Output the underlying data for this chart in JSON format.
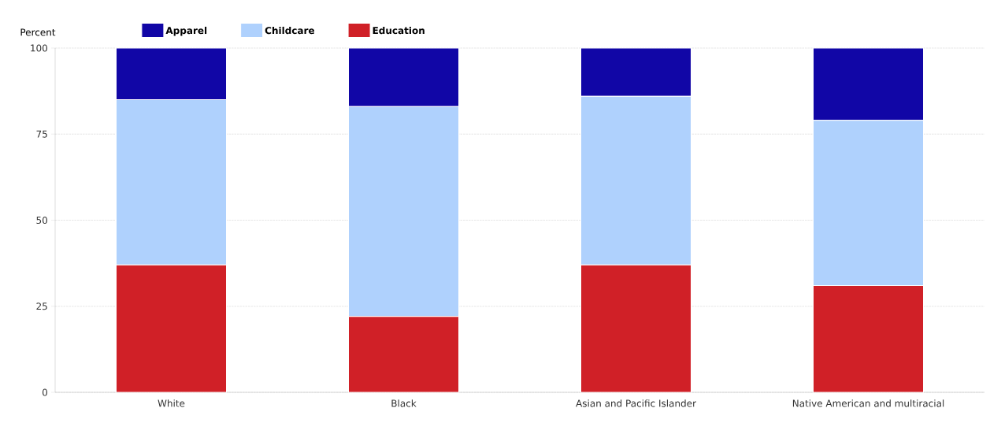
{
  "chart_data": {
    "type": "bar",
    "stacked": true,
    "ylabel": "Percent",
    "categories": [
      "White",
      "Black",
      "Asian and Pacific Islander",
      "Native American and multiracial"
    ],
    "series": [
      {
        "name": "Education",
        "color": "#d02027",
        "values": [
          37,
          22,
          37,
          31
        ]
      },
      {
        "name": "Childcare",
        "color": "#afd1fd",
        "values": [
          48,
          61,
          49,
          48
        ]
      },
      {
        "name": "Apparel",
        "color": "#1106a6",
        "values": [
          15,
          17,
          14,
          21
        ]
      }
    ],
    "ylim": [
      0,
      100
    ],
    "yticks": [
      0,
      25,
      50,
      75,
      100
    ],
    "grid": "y",
    "legend": "top left"
  }
}
